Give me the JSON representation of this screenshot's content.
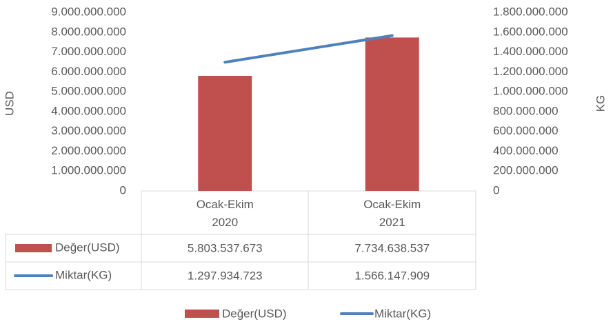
{
  "chart_data": {
    "type": "bar_line",
    "categories": [
      "Ocak-Ekim 2020",
      "Ocak-Ekim 2021"
    ],
    "series": [
      {
        "name": "Değer(USD)",
        "color": "#c0504d",
        "values": [
          5803537673,
          7734638537
        ],
        "value_labels": [
          "5.803.537.673",
          "7.734.638.537"
        ]
      },
      {
        "name": "Miktar(KG)",
        "color": "#4f81bd",
        "axis": "y2",
        "values": [
          1297934723,
          1566147909
        ],
        "value_labels": [
          "1.297.934.723",
          "1.566.147.909"
        ]
      }
    ],
    "y_label": "USD",
    "y2_label": "KG",
    "ylim": [
      0,
      9000000000
    ],
    "yticks": [
      0,
      {
        "value": 1000000000,
        "label": "1.000.000.000"
      },
      {
        "value": 2000000000,
        "label": "2.000.000.000"
      },
      {
        "value": 3000000000,
        "label": "3.000.000.000"
      },
      {
        "value": 4000000000,
        "label": "4.000.000.000"
      },
      {
        "value": 5000000000,
        "label": "5.000.000.000"
      },
      {
        "value": 6000000000,
        "label": "6.000.000.000"
      },
      {
        "value": 7000000000,
        "label": "7.000.000.000"
      },
      {
        "value": 8000000000,
        "label": "8.000.000.000"
      },
      {
        "value": 9000000000,
        "label": "9.000.000.000"
      }
    ],
    "y2lim": [
      0,
      1800000000
    ],
    "y2ticks": [
      0,
      {
        "value": 200000000,
        "label": "200.000.000"
      },
      {
        "value": 400000000,
        "label": "400.000.000"
      },
      {
        "value": 600000000,
        "label": "600.000.000"
      },
      {
        "value": 800000000,
        "label": "800.000.000"
      },
      {
        "value": 1000000000,
        "label": "1.000.000.000"
      },
      {
        "value": 1200000000,
        "label": "1.200.000.000"
      },
      {
        "value": 1400000000,
        "label": "1.400.000.000"
      },
      {
        "value": 1600000000,
        "label": "1.600.000.000"
      },
      {
        "value": 1800000000,
        "label": "1.800.000.000"
      }
    ],
    "grid": false,
    "legend": "bottom",
    "data_table": true
  }
}
